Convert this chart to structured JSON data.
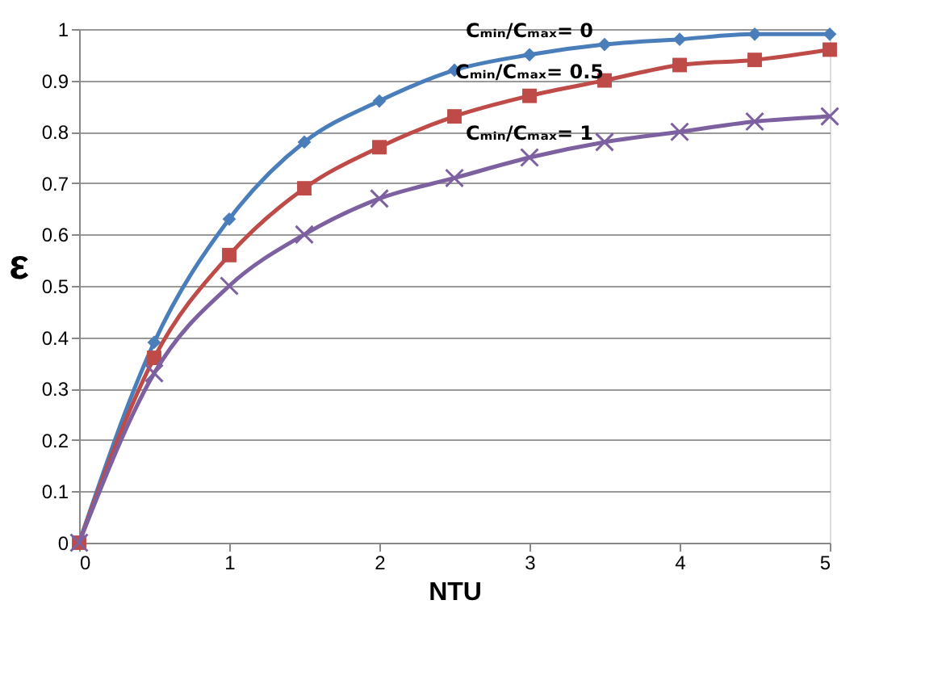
{
  "chart_data": {
    "type": "line",
    "xlabel": "NTU",
    "ylabel": "ε",
    "x": [
      0,
      0.5,
      1,
      1.5,
      2,
      2.5,
      3,
      3.5,
      4,
      4.5,
      5
    ],
    "series": [
      {
        "name": "Cₘᵢₙ/Cₘₐₓ= 0",
        "color": "#4a7ebb",
        "marker": "diamond",
        "values": [
          0,
          0.39,
          0.63,
          0.78,
          0.86,
          0.92,
          0.95,
          0.97,
          0.98,
          0.99,
          0.99
        ]
      },
      {
        "name": "Cₘᵢₙ/Cₘₐₓ= 0.5",
        "color": "#be4b48",
        "marker": "square",
        "values": [
          0,
          0.36,
          0.56,
          0.69,
          0.77,
          0.83,
          0.87,
          0.9,
          0.93,
          0.94,
          0.96
        ]
      },
      {
        "name": "Cₘᵢₙ/Cₘₐₓ= 1",
        "color": "#7d60a0",
        "marker": "cross",
        "values": [
          0,
          0.33,
          0.5,
          0.6,
          0.67,
          0.71,
          0.75,
          0.78,
          0.8,
          0.82,
          0.83
        ]
      }
    ],
    "xlim": [
      0,
      5
    ],
    "xticks": [
      0,
      1,
      2,
      3,
      4,
      5
    ],
    "ylim": [
      0,
      1
    ],
    "yticks": [
      0,
      0.1,
      0.2,
      0.3,
      0.4,
      0.5,
      0.6,
      0.7,
      0.8,
      0.9,
      1
    ],
    "grid": "y",
    "legend": false,
    "line_style": "solid"
  }
}
